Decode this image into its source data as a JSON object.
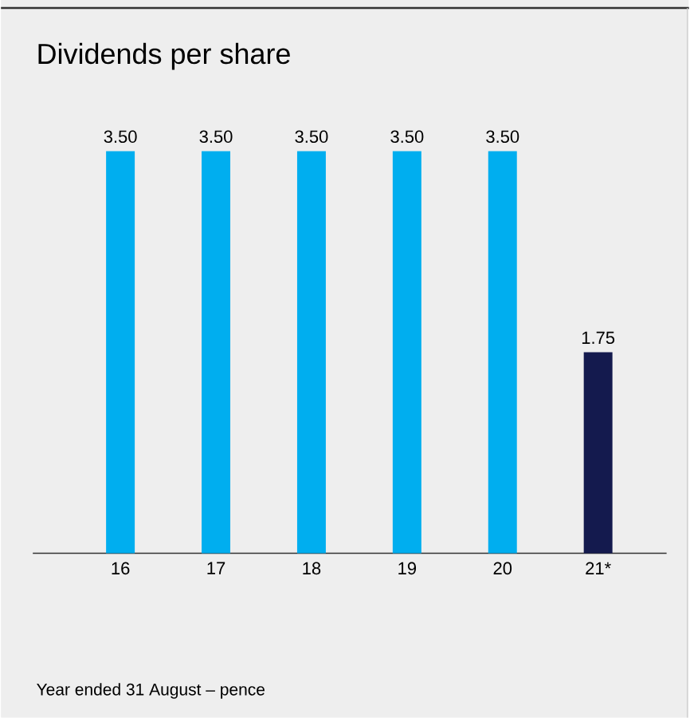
{
  "chart_data": {
    "type": "bar",
    "title": "Dividends per share",
    "categories": [
      "16",
      "17",
      "18",
      "19",
      "20",
      "21*"
    ],
    "values": [
      3.5,
      3.5,
      3.5,
      3.5,
      3.5,
      1.75
    ],
    "colors": [
      "#00aeef",
      "#00aeef",
      "#00aeef",
      "#00aeef",
      "#00aeef",
      "#141a4e"
    ],
    "value_labels": [
      "3.50",
      "3.50",
      "3.50",
      "3.50",
      "3.50",
      "1.75"
    ],
    "annotations": [
      "Year ended 31 August – pence"
    ]
  }
}
